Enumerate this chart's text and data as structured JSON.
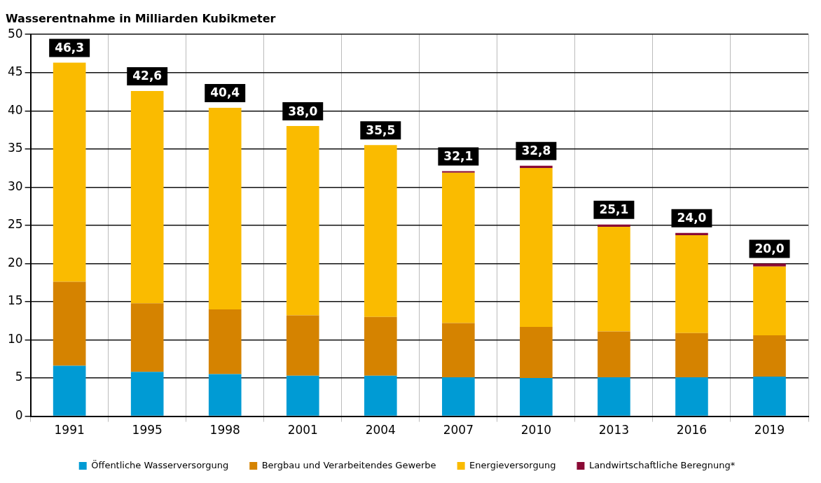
{
  "chart_data": {
    "type": "bar",
    "title": "Wasserentnahme in Milliarden Kubikmeter",
    "stacked": true,
    "categories": [
      "1991",
      "1995",
      "1998",
      "2001",
      "2004",
      "2007",
      "2010",
      "2013",
      "2016",
      "2019"
    ],
    "series": [
      {
        "name": "Öffentliche Wasserversorgung",
        "color": "#009bd4",
        "values": [
          6.6,
          5.8,
          5.5,
          5.3,
          5.3,
          5.1,
          5.0,
          5.1,
          5.1,
          5.2
        ]
      },
      {
        "name": "Bergbau und Verarbeitendes Gewerbe",
        "color": "#d58300",
        "values": [
          11.0,
          9.0,
          8.5,
          7.9,
          7.7,
          7.1,
          6.7,
          6.0,
          5.8,
          5.4
        ]
      },
      {
        "name": "Energieversorgung",
        "color": "#fabb00",
        "values": [
          28.7,
          27.8,
          26.4,
          24.8,
          22.5,
          19.7,
          20.8,
          13.7,
          12.8,
          9.0
        ]
      },
      {
        "name": "Landwirtschaftliche Beregnung*",
        "color": "#8a0a35",
        "values": [
          null,
          null,
          null,
          null,
          null,
          0.2,
          0.3,
          0.3,
          0.3,
          0.4
        ]
      }
    ],
    "totals": [
      "46,3",
      "42,6",
      "40,4",
      "38,0",
      "35,5",
      "32,1",
      "32,8",
      "25,1",
      "24,0",
      "20,0"
    ],
    "ylim": [
      0,
      50
    ],
    "yticks": [
      0,
      5,
      10,
      15,
      20,
      25,
      30,
      35,
      40,
      45,
      50
    ],
    "grid": true,
    "legend": "bottom"
  }
}
